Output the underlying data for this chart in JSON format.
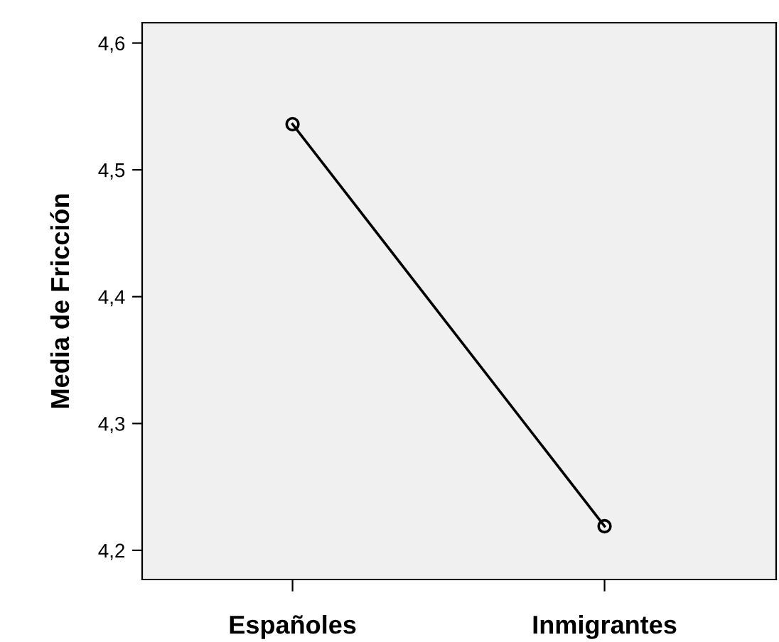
{
  "chart_data": {
    "type": "line",
    "ylabel": "Media de Fricción",
    "categories": [
      "Españoles",
      "Inmigrantes"
    ],
    "series": [
      {
        "color": "#000000",
        "values": [
          4.536,
          4.219
        ]
      }
    ],
    "marker": "circle",
    "line_style": "solid",
    "grid": false,
    "legend": false,
    "ylim": [
      4.177,
      4.616
    ],
    "yticks": [
      {
        "value": 4.2,
        "label": "4,2"
      },
      {
        "value": 4.3,
        "label": "4,3"
      },
      {
        "value": 4.4,
        "label": "4,4"
      },
      {
        "value": 4.5,
        "label": "4,5"
      },
      {
        "value": 4.6,
        "label": "4,6"
      }
    ]
  }
}
